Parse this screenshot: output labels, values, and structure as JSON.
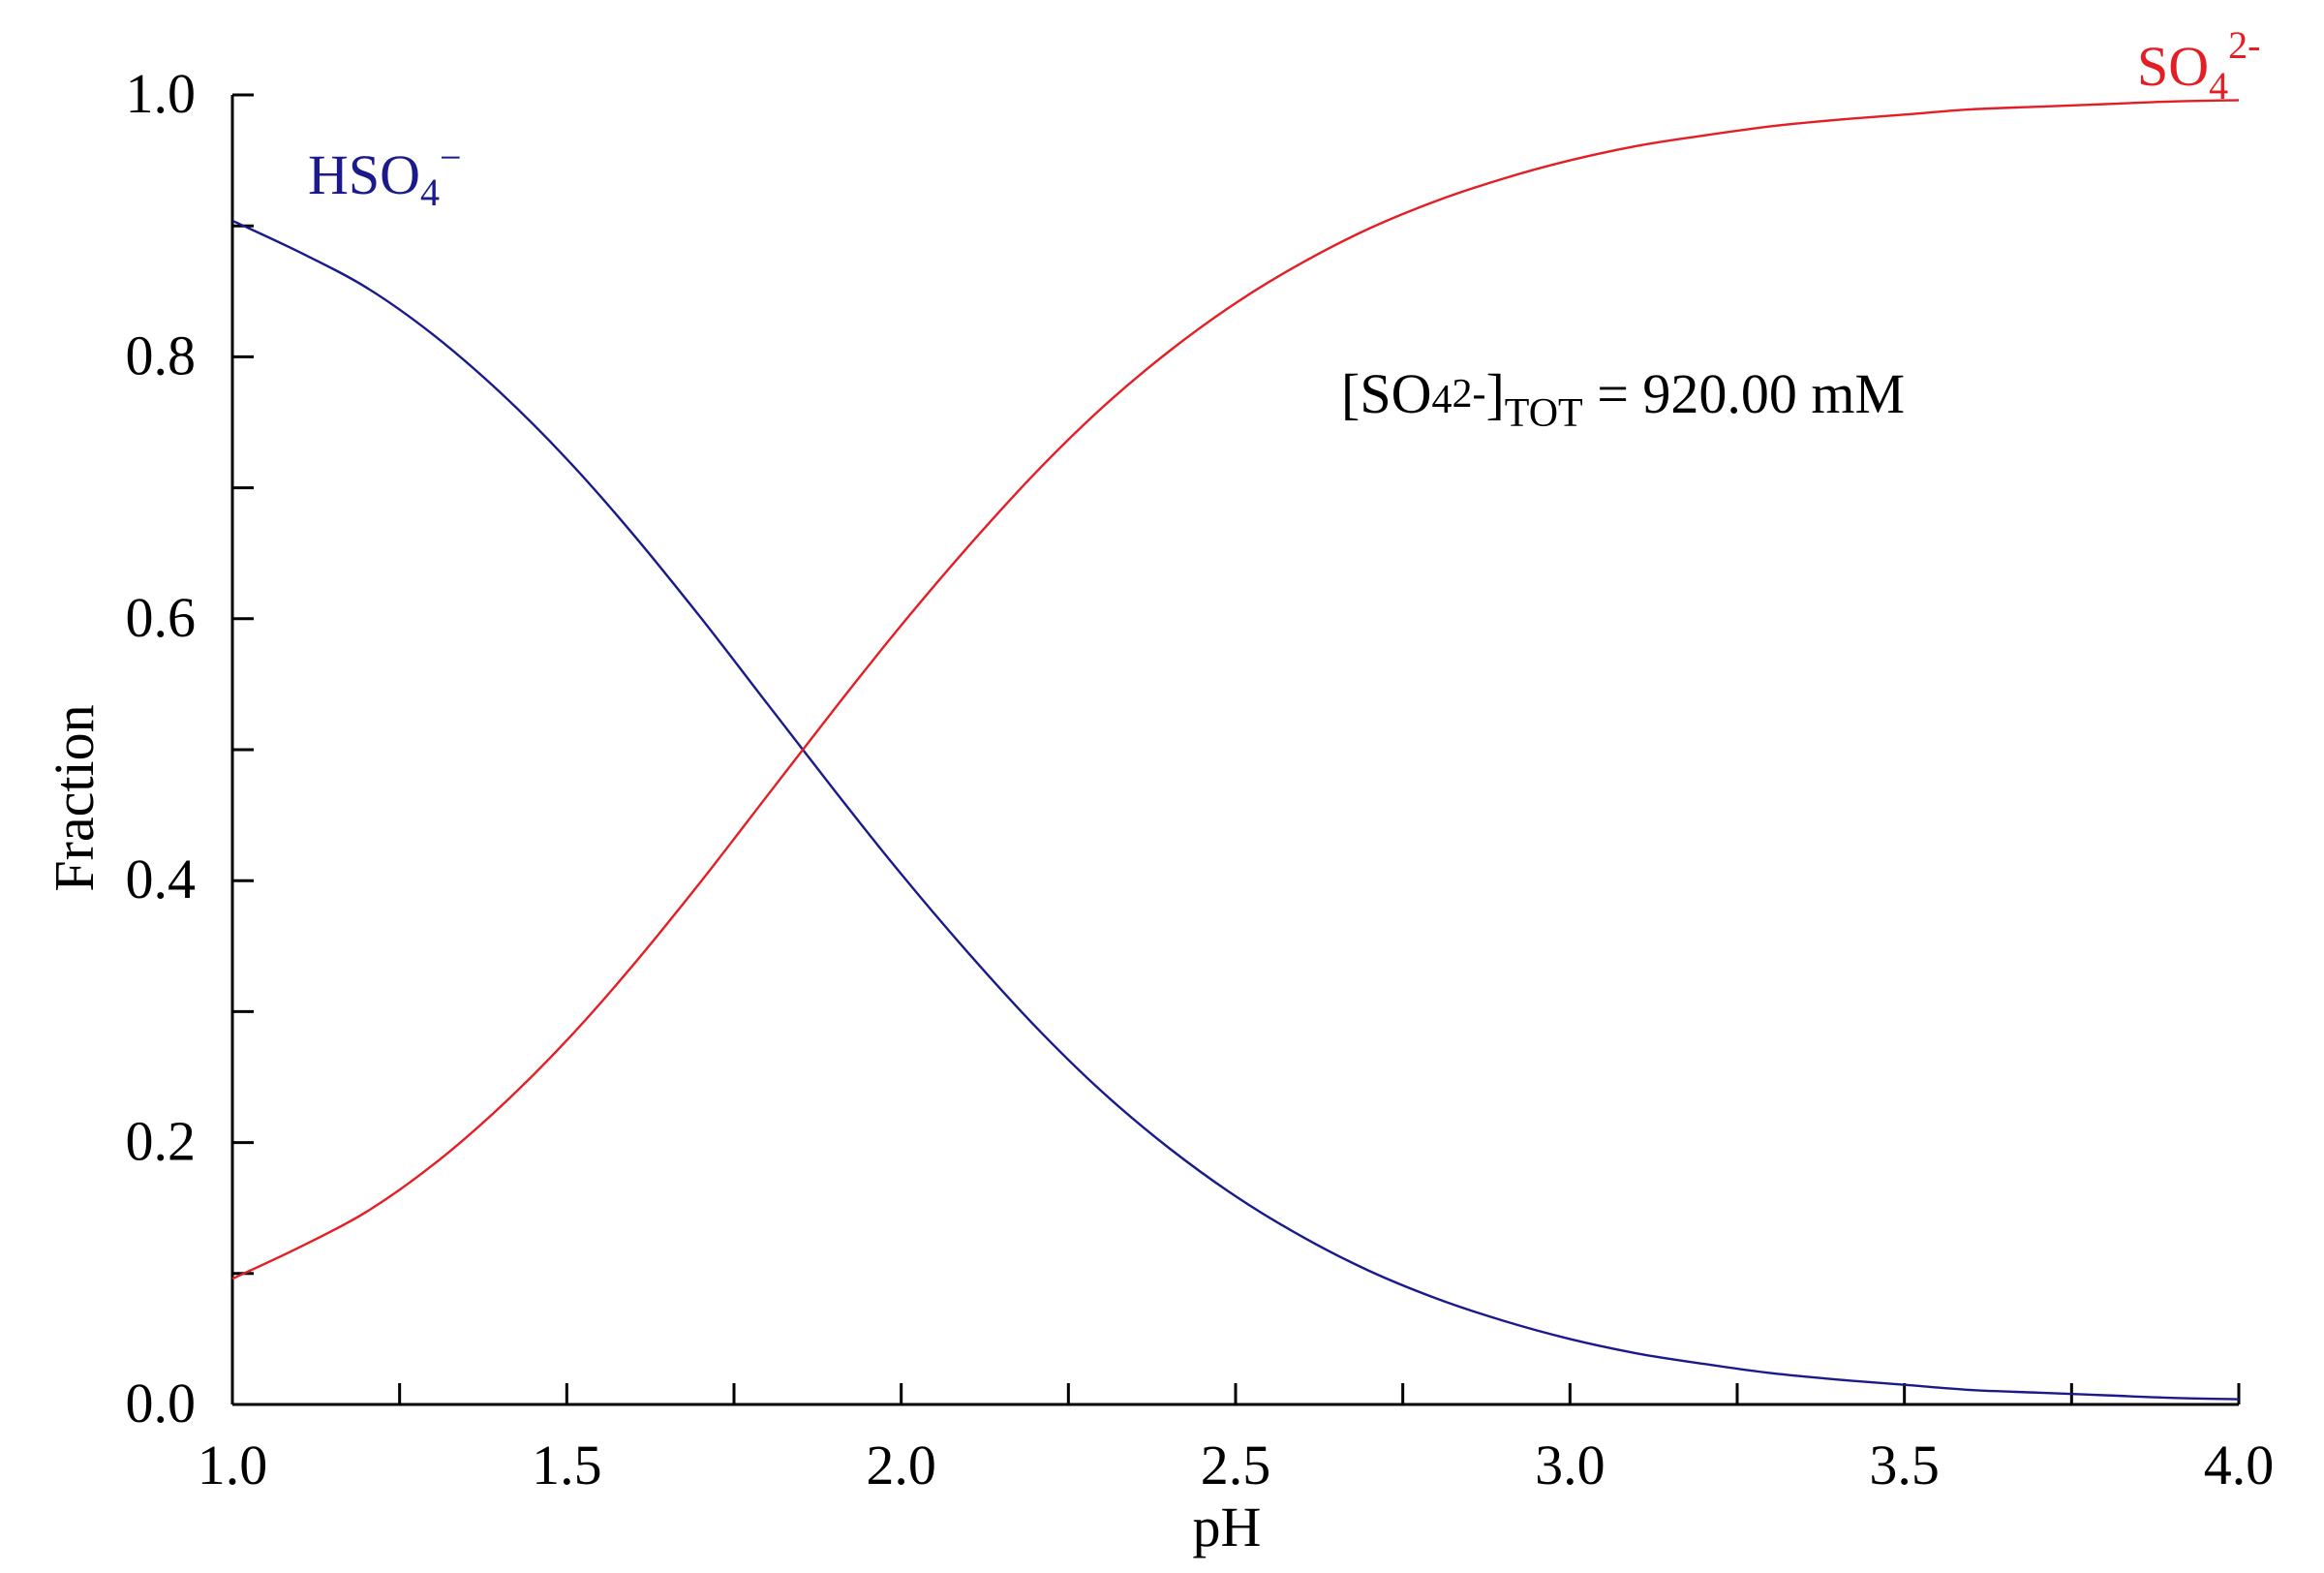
{
  "chart_data": {
    "type": "line",
    "title": "",
    "xlabel": "pH",
    "ylabel": "Fraction",
    "xlim": [
      1.0,
      4.0
    ],
    "ylim": [
      0.0,
      1.0
    ],
    "x_ticks": [
      1.0,
      1.5,
      2.0,
      2.5,
      3.0,
      3.5,
      4.0
    ],
    "x_tick_labels": [
      "1.0",
      "1.5",
      "2.0",
      "2.5",
      "3.0",
      "3.5",
      "4.0"
    ],
    "y_ticks": [
      0.0,
      0.2,
      0.4,
      0.6,
      0.8,
      1.0
    ],
    "y_tick_labels": [
      "0.0",
      "0.2",
      "0.4",
      "0.6",
      "0.8",
      "1.0"
    ],
    "grid": false,
    "x": [
      1.0,
      1.1,
      1.2,
      1.3,
      1.4,
      1.5,
      1.6,
      1.7,
      1.8,
      1.9,
      2.0,
      2.1,
      2.2,
      2.3,
      2.4,
      2.5,
      2.6,
      2.7,
      2.8,
      2.9,
      3.0,
      3.1,
      3.2,
      3.3,
      3.4,
      3.5,
      3.6,
      3.7,
      3.8,
      3.9,
      4.0
    ],
    "series": [
      {
        "name": "HSO4-",
        "label_main": "HSO",
        "label_sub": "4",
        "label_sup": "−",
        "color": "#1a1a8c",
        "values": [
          0.904,
          0.88,
          0.853,
          0.817,
          0.773,
          0.722,
          0.664,
          0.601,
          0.535,
          0.469,
          0.405,
          0.345,
          0.289,
          0.239,
          0.196,
          0.159,
          0.128,
          0.102,
          0.081,
          0.064,
          0.05,
          0.039,
          0.031,
          0.024,
          0.019,
          0.015,
          0.011,
          0.009,
          0.007,
          0.005,
          0.004
        ]
      },
      {
        "name": "SO4 2-",
        "label_main": "SO",
        "label_sub": "4",
        "label_sup": "2-",
        "color": "#e31e24",
        "values": [
          0.096,
          0.12,
          0.147,
          0.183,
          0.227,
          0.278,
          0.336,
          0.399,
          0.465,
          0.531,
          0.595,
          0.655,
          0.711,
          0.761,
          0.804,
          0.841,
          0.872,
          0.898,
          0.919,
          0.936,
          0.95,
          0.961,
          0.969,
          0.976,
          0.981,
          0.985,
          0.989,
          0.991,
          0.993,
          0.995,
          0.996
        ]
      }
    ],
    "annotations": [
      {
        "text_open": "[SO",
        "text_sub": "4",
        "text_sup": "2-",
        "text_close": "]",
        "text_sub2": "TOT",
        "text_rest": " =  920.00 mM"
      }
    ]
  }
}
